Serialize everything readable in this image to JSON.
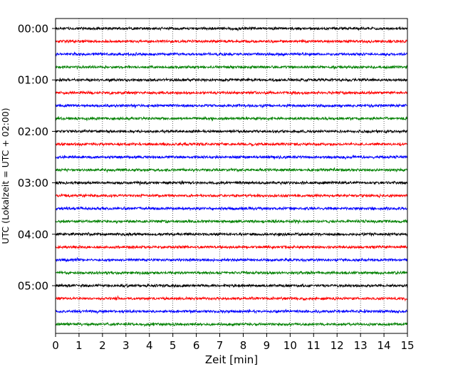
{
  "chart_data": {
    "type": "line",
    "title": "",
    "xlabel": "Zeit  [min]",
    "ylabel": "UTC (Lokalzeit = UTC + 02:00)",
    "xlim": [
      0,
      15
    ],
    "x_ticks": [
      "0",
      "1",
      "2",
      "3",
      "4",
      "5",
      "6",
      "7",
      "8",
      "9",
      "10",
      "11",
      "12",
      "13",
      "14",
      "15"
    ],
    "y_ticks": [
      "00:00",
      "01:00",
      "02:00",
      "03:00",
      "04:00",
      "05:00"
    ],
    "grid": "vertical dotted lines at each minute",
    "traces_per_hour": 4,
    "trace_interval_minutes": 15,
    "hours_shown": 6,
    "trace_color_cycle": [
      "#000000",
      "#ff0000",
      "#0000ff",
      "#008000"
    ],
    "series": [
      {
        "row": 0,
        "start": "00:00",
        "color": "#000000"
      },
      {
        "row": 1,
        "start": "00:15",
        "color": "#ff0000"
      },
      {
        "row": 2,
        "start": "00:30",
        "color": "#0000ff"
      },
      {
        "row": 3,
        "start": "00:45",
        "color": "#008000"
      },
      {
        "row": 4,
        "start": "01:00",
        "color": "#000000"
      },
      {
        "row": 5,
        "start": "01:15",
        "color": "#ff0000"
      },
      {
        "row": 6,
        "start": "01:30",
        "color": "#0000ff"
      },
      {
        "row": 7,
        "start": "01:45",
        "color": "#008000"
      },
      {
        "row": 8,
        "start": "02:00",
        "color": "#000000"
      },
      {
        "row": 9,
        "start": "02:15",
        "color": "#ff0000"
      },
      {
        "row": 10,
        "start": "02:30",
        "color": "#0000ff"
      },
      {
        "row": 11,
        "start": "02:45",
        "color": "#008000"
      },
      {
        "row": 12,
        "start": "03:00",
        "color": "#000000"
      },
      {
        "row": 13,
        "start": "03:15",
        "color": "#ff0000"
      },
      {
        "row": 14,
        "start": "03:30",
        "color": "#0000ff"
      },
      {
        "row": 15,
        "start": "03:45",
        "color": "#008000"
      },
      {
        "row": 16,
        "start": "04:00",
        "color": "#000000"
      },
      {
        "row": 17,
        "start": "04:15",
        "color": "#ff0000"
      },
      {
        "row": 18,
        "start": "04:30",
        "color": "#0000ff"
      },
      {
        "row": 19,
        "start": "04:45",
        "color": "#008000"
      },
      {
        "row": 20,
        "start": "05:00",
        "color": "#000000"
      },
      {
        "row": 21,
        "start": "05:15",
        "color": "#ff0000"
      },
      {
        "row": 22,
        "start": "05:30",
        "color": "#0000ff"
      },
      {
        "row": 23,
        "start": "05:45",
        "color": "#008000"
      }
    ]
  }
}
